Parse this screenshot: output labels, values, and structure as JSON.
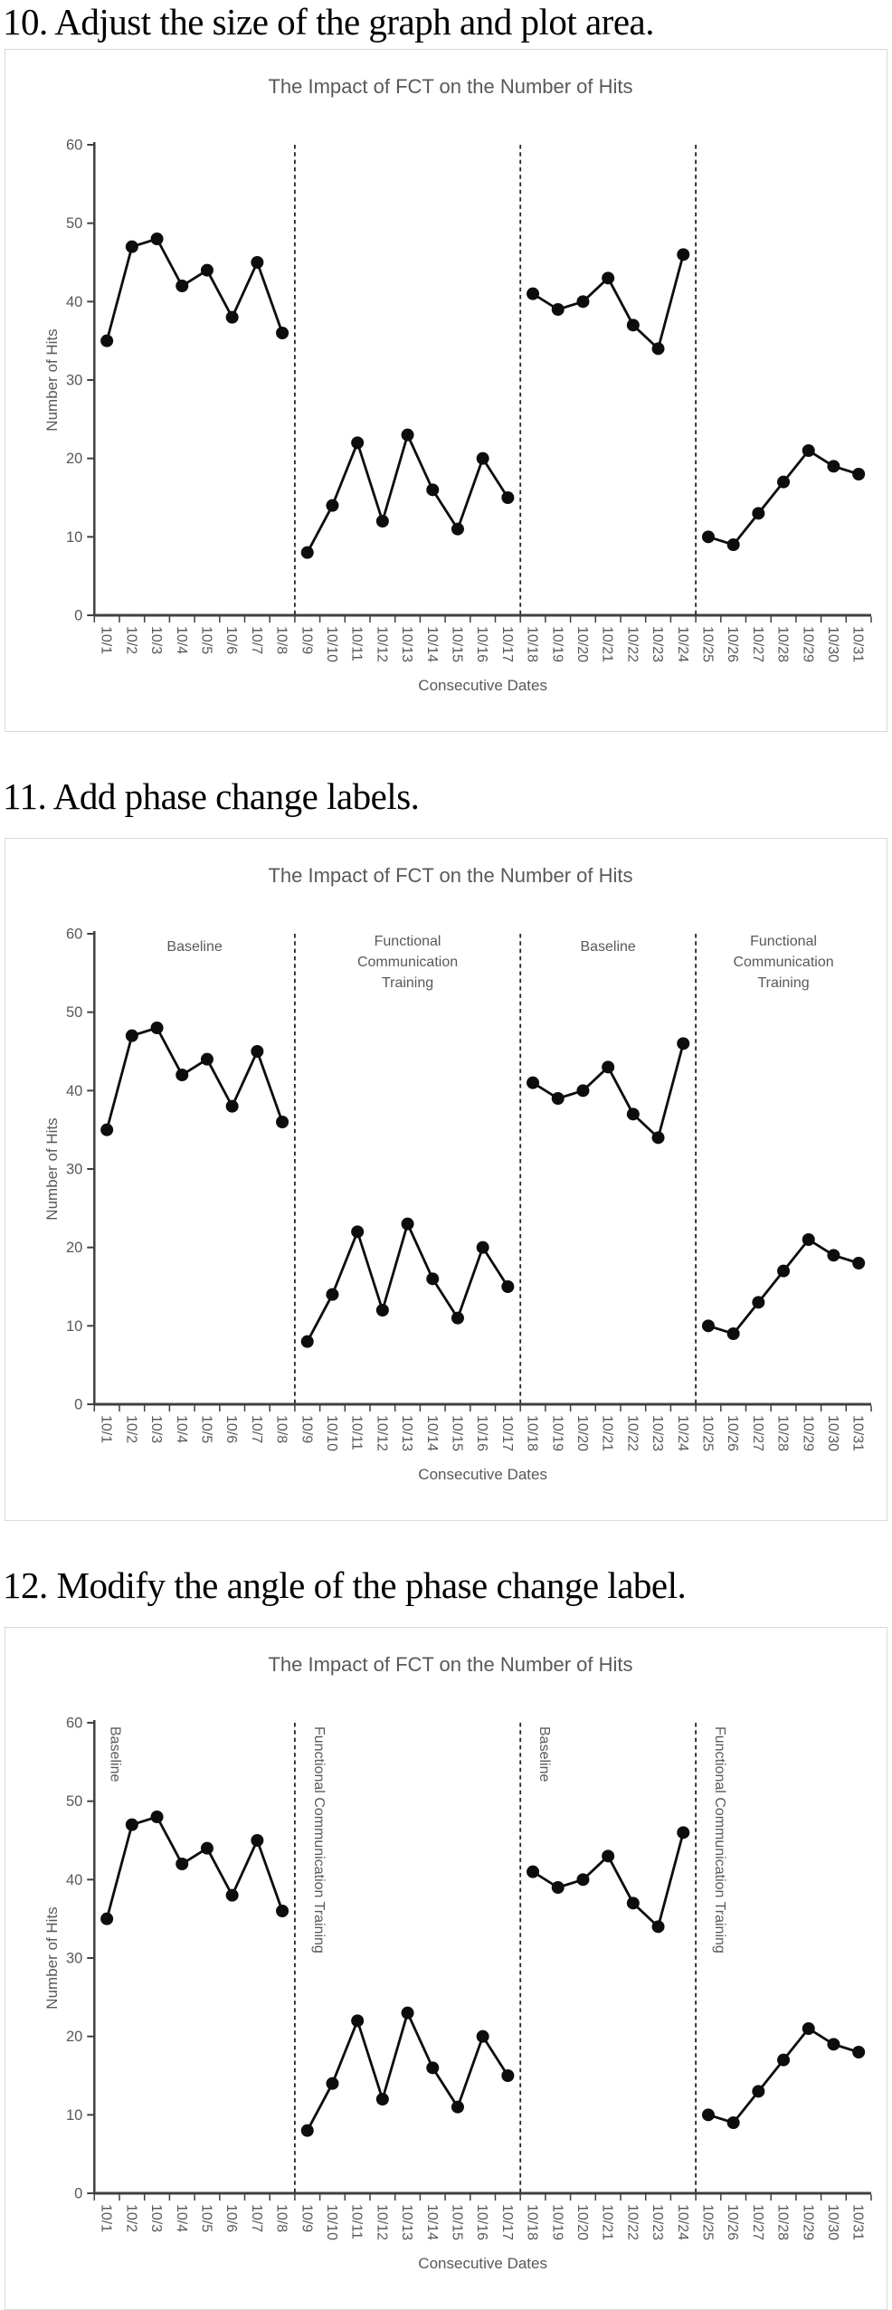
{
  "page": {
    "background": "#ffffff"
  },
  "sections": [
    {
      "id": "step-10",
      "heading": "10. Adjust the size of the graph and plot area.",
      "chart_index": 0
    },
    {
      "id": "step-11",
      "heading": "11. Add phase change labels.",
      "chart_index": 1
    },
    {
      "id": "step-12",
      "heading": "12. Modify the angle of the phase change label.",
      "chart_index": 2
    }
  ],
  "colors": {
    "heading": "#000000",
    "card_border": "#d9d9d9",
    "chart_title": "#595959",
    "tick_label": "#595959",
    "axis_title": "#595959",
    "axis_line": "#404040",
    "separator": "#262626",
    "series": "#0d0d0d",
    "phase_label": "#595959",
    "background": "#ffffff"
  },
  "chart_data": [
    {
      "type": "line",
      "title": "The Impact of FCT on the Number of Hits",
      "xlabel": "Consecutive Dates",
      "ylabel": "Number of Hits",
      "ylim": [
        0,
        60
      ],
      "yticks": [
        0,
        10,
        20,
        30,
        40,
        50,
        60
      ],
      "grid": false,
      "legend": "none",
      "marker": "filled-circle",
      "x": [
        "10/1",
        "10/2",
        "10/3",
        "10/4",
        "10/5",
        "10/6",
        "10/7",
        "10/8",
        "10/9",
        "10/10",
        "10/11",
        "10/12",
        "10/13",
        "10/14",
        "10/15",
        "10/16",
        "10/17",
        "10/18",
        "10/19",
        "10/20",
        "10/21",
        "10/22",
        "10/23",
        "10/24",
        "10/25",
        "10/26",
        "10/27",
        "10/28",
        "10/29",
        "10/30",
        "10/31"
      ],
      "separators": {
        "style": "dashed",
        "after_dates": [
          "10/8",
          "10/17",
          "10/24"
        ]
      },
      "phase_label_style": "none",
      "phase_labels": [],
      "phases": [
        {
          "values": [
            35,
            47,
            48,
            42,
            44,
            38,
            45,
            36
          ]
        },
        {
          "values": [
            8,
            14,
            22,
            12,
            23,
            16,
            11,
            20,
            15
          ]
        },
        {
          "values": [
            41,
            39,
            40,
            43,
            37,
            34,
            46
          ]
        },
        {
          "values": [
            10,
            9,
            13,
            17,
            21,
            19,
            18
          ]
        }
      ]
    },
    {
      "type": "line",
      "title": "The Impact of FCT on the Number of Hits",
      "xlabel": "Consecutive Dates",
      "ylabel": "Number of Hits",
      "ylim": [
        0,
        60
      ],
      "yticks": [
        0,
        10,
        20,
        30,
        40,
        50,
        60
      ],
      "grid": false,
      "legend": "none",
      "marker": "filled-circle",
      "x": [
        "10/1",
        "10/2",
        "10/3",
        "10/4",
        "10/5",
        "10/6",
        "10/7",
        "10/8",
        "10/9",
        "10/10",
        "10/11",
        "10/12",
        "10/13",
        "10/14",
        "10/15",
        "10/16",
        "10/17",
        "10/18",
        "10/19",
        "10/20",
        "10/21",
        "10/22",
        "10/23",
        "10/24",
        "10/25",
        "10/26",
        "10/27",
        "10/28",
        "10/29",
        "10/30",
        "10/31"
      ],
      "separators": {
        "style": "dashed",
        "after_dates": [
          "10/8",
          "10/17",
          "10/24"
        ]
      },
      "phase_label_style": "horizontal",
      "phase_labels": [
        "Baseline",
        "Functional Communication Training",
        "Baseline",
        "Functional Communication Training"
      ],
      "phases": [
        {
          "label": "Baseline",
          "values": [
            35,
            47,
            48,
            42,
            44,
            38,
            45,
            36
          ]
        },
        {
          "label": "Functional Communication Training",
          "values": [
            8,
            14,
            22,
            12,
            23,
            16,
            11,
            20,
            15
          ]
        },
        {
          "label": "Baseline",
          "values": [
            41,
            39,
            40,
            43,
            37,
            34,
            46
          ]
        },
        {
          "label": "Functional Communication Training",
          "values": [
            10,
            9,
            13,
            17,
            21,
            19,
            18
          ]
        }
      ]
    },
    {
      "type": "line",
      "title": "The Impact of FCT on the Number of Hits",
      "xlabel": "Consecutive Dates",
      "ylabel": "Number of Hits",
      "ylim": [
        0,
        60
      ],
      "yticks": [
        0,
        10,
        20,
        30,
        40,
        50,
        60
      ],
      "grid": false,
      "legend": "none",
      "marker": "filled-circle",
      "x": [
        "10/1",
        "10/2",
        "10/3",
        "10/4",
        "10/5",
        "10/6",
        "10/7",
        "10/8",
        "10/9",
        "10/10",
        "10/11",
        "10/12",
        "10/13",
        "10/14",
        "10/15",
        "10/16",
        "10/17",
        "10/18",
        "10/19",
        "10/20",
        "10/21",
        "10/22",
        "10/23",
        "10/24",
        "10/25",
        "10/26",
        "10/27",
        "10/28",
        "10/29",
        "10/30",
        "10/31"
      ],
      "separators": {
        "style": "dashed",
        "after_dates": [
          "10/8",
          "10/17",
          "10/24"
        ]
      },
      "phase_label_style": "vertical",
      "phase_labels": [
        "Baseline",
        "Functional Communication Training",
        "Baseline",
        "Functional Communication Training"
      ],
      "phases": [
        {
          "label": "Baseline",
          "values": [
            35,
            47,
            48,
            42,
            44,
            38,
            45,
            36
          ]
        },
        {
          "label": "Functional Communication Training",
          "values": [
            8,
            14,
            22,
            12,
            23,
            16,
            11,
            20,
            15
          ]
        },
        {
          "label": "Baseline",
          "values": [
            41,
            39,
            40,
            43,
            37,
            34,
            46
          ]
        },
        {
          "label": "Functional Communication Training",
          "values": [
            10,
            9,
            13,
            17,
            21,
            19,
            18
          ]
        }
      ]
    }
  ]
}
